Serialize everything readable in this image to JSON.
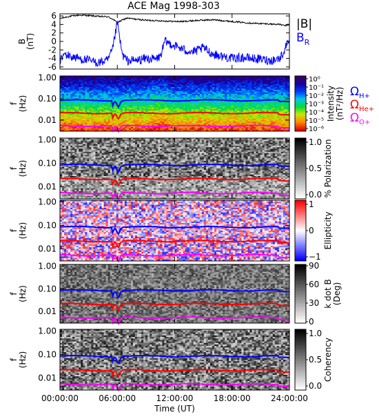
{
  "title": "ACE Mag 1998-303",
  "chart_data": [
    {
      "id": "field",
      "type": "line",
      "ylabel": "B\n(nT)",
      "ylim": [
        -6.5,
        6.5
      ],
      "yticks": [
        6,
        4,
        2,
        0,
        -2,
        -4,
        -6
      ],
      "xlim": [
        0,
        24
      ],
      "series": [
        {
          "name": "|B|",
          "color": "#000000",
          "x": [
            0,
            1,
            2,
            3,
            4,
            5,
            5.5,
            6,
            6.5,
            7,
            8,
            9,
            10,
            11,
            12,
            13,
            14,
            15,
            16,
            17,
            18,
            19,
            20,
            21,
            22,
            23,
            23.5,
            24
          ],
          "y": [
            5.4,
            5.9,
            6.2,
            6.1,
            5.9,
            5.8,
            5.3,
            4.4,
            5.0,
            5.5,
            5.2,
            5.0,
            4.9,
            4.8,
            4.7,
            4.7,
            4.9,
            5.0,
            5.1,
            4.9,
            4.7,
            4.5,
            4.3,
            4.2,
            4.1,
            4.0,
            3.7,
            4.0
          ]
        },
        {
          "name": "B_R",
          "color": "#0000ff",
          "x": [
            0,
            0.5,
            1,
            2,
            3,
            4,
            5,
            5.5,
            6,
            6.5,
            7,
            8,
            9,
            10,
            10.5,
            11,
            12,
            13,
            14,
            15,
            16,
            17,
            18,
            19,
            20,
            21,
            22,
            23,
            23.5,
            24
          ],
          "y": [
            -4.5,
            -3.0,
            -3.5,
            -4.0,
            -4.5,
            -5.0,
            -4.5,
            -2.0,
            4.5,
            -3.0,
            -4.5,
            -4.5,
            -4.0,
            -4.2,
            -3.5,
            0.0,
            -1.0,
            -2.0,
            -2.5,
            -1.5,
            -3.0,
            -3.5,
            -4.0,
            -3.8,
            -4.0,
            -4.2,
            -4.5,
            -4.0,
            -2.0,
            1.0
          ]
        }
      ]
    },
    {
      "id": "intensity",
      "type": "heatmap",
      "ylabel": "f\n(Hz)",
      "yscale": "log",
      "ylim": [
        0.003,
        1.2
      ],
      "colorbar": {
        "label": "Intensity\n(nT²/Hz)",
        "scale": "log",
        "ticks": [
          "10⁰",
          "10⁻¹",
          "10⁻²",
          "10⁻³",
          "10⁻⁴",
          "10⁻⁵",
          "10⁻⁶"
        ]
      }
    },
    {
      "id": "polarization",
      "type": "heatmap",
      "ylabel": "f\n(Hz)",
      "yscale": "log",
      "ylim": [
        0.003,
        1.2
      ],
      "colorbar": {
        "label": "% Polarization",
        "ticks": [
          "1.0",
          "0.5",
          "0.0"
        ]
      }
    },
    {
      "id": "ellipticity",
      "type": "heatmap",
      "ylabel": "f\n(Hz)",
      "yscale": "log",
      "ylim": [
        0.003,
        1.2
      ],
      "colorbar": {
        "label": "Ellipticity",
        "ticks": [
          "1",
          "0",
          "−1"
        ]
      }
    },
    {
      "id": "kdotb",
      "type": "heatmap",
      "ylabel": "f\n(Hz)",
      "yscale": "log",
      "ylim": [
        0.003,
        1.2
      ],
      "colorbar": {
        "label": "k dot B\n(Deg)",
        "ticks": [
          "90",
          "60",
          "30",
          "0"
        ]
      }
    },
    {
      "id": "coherency",
      "type": "heatmap",
      "ylabel": "f\n(Hz)",
      "yscale": "log",
      "ylim": [
        0.003,
        1.2
      ],
      "colorbar": {
        "label": "Coherency",
        "ticks": [
          "1.0",
          "0.5",
          "0.0"
        ]
      }
    }
  ],
  "gyrofrequencies": [
    {
      "name": "ΩH+",
      "color": "#0000ff",
      "base": 0.085
    },
    {
      "name": "ΩHe+",
      "color": "#ff0000",
      "base": 0.0213
    },
    {
      "name": "ΩO+",
      "color": "#ff00ff",
      "base": 0.0053
    }
  ],
  "freq_yticks": [
    "1.00",
    "0.10",
    "0.01"
  ],
  "xaxis": {
    "label": "Time (UT)",
    "ticks": [
      "00:00:00",
      "06:00:00",
      "12:00:00",
      "18:00:00",
      "24:00:00"
    ]
  },
  "legend": {
    "b_total": "|B|",
    "b_r": "B",
    "b_r_sub": "R",
    "h": "Ω",
    "h_sub": "H+",
    "he": "Ω",
    "he_sub": "He+",
    "o": "Ω",
    "o_sub": "O+"
  }
}
